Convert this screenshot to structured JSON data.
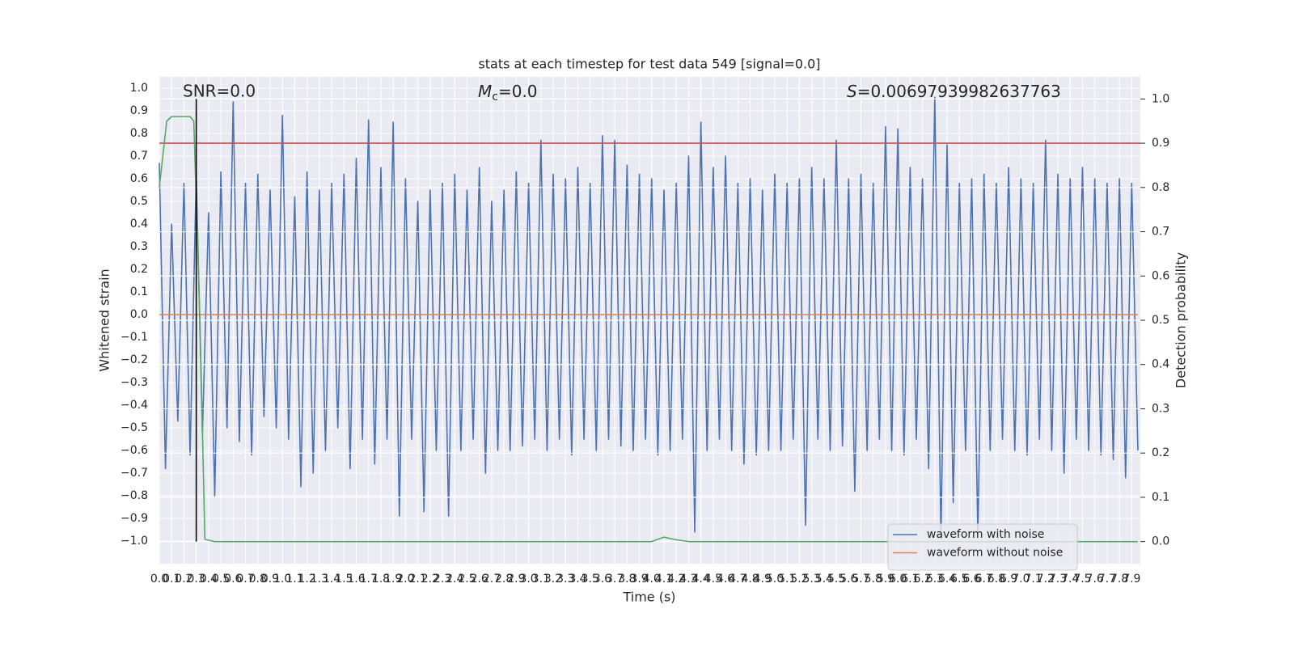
{
  "chart_data": {
    "type": "line",
    "title": "stats at each timestep for test data 549 [signal=0.0]",
    "xlabel": "Time (s)",
    "ylabel": "Whitened strain",
    "y2label": "Detection probability",
    "annotations": [
      {
        "text": "SNR=0.0"
      },
      {
        "symbol": "M",
        "subscript": "c",
        "text": "=0.0"
      },
      {
        "symbol": "S",
        "text": "=0.00697939982637763"
      }
    ],
    "xlim": [
      0,
      7.97
    ],
    "ylim": [
      -1.1,
      1.05
    ],
    "y2lim": [
      -0.05,
      1.05
    ],
    "grid": true,
    "legend": "lower right",
    "xticks": [
      {
        "value": 0,
        "label": "0.0"
      },
      0.1,
      0.2,
      0.3,
      0.4,
      0.5,
      0.6,
      0.7,
      0.8,
      0.9,
      {
        "value": 1,
        "label": "1.0"
      },
      1.1,
      1.2,
      1.3,
      1.4,
      1.5,
      1.6,
      1.7,
      1.8,
      1.9,
      {
        "value": 2,
        "label": "2.0"
      },
      2.1,
      2.2,
      2.3,
      2.4,
      2.5,
      2.6,
      2.7,
      2.8,
      2.9,
      {
        "value": 3,
        "label": "3.0"
      },
      3.1,
      3.2,
      3.3,
      3.4,
      3.5,
      3.6,
      3.7,
      3.8,
      3.9,
      {
        "value": 4,
        "label": "4.0"
      },
      4.1,
      4.2,
      4.3,
      4.4,
      4.5,
      4.6,
      4.7,
      4.8,
      4.9,
      {
        "value": 5,
        "label": "5.0"
      },
      5.1,
      5.2,
      5.3,
      5.4,
      5.5,
      5.6,
      5.7,
      5.8,
      5.9,
      {
        "value": 6,
        "label": "6.0"
      },
      6.1,
      6.2,
      6.3,
      6.4,
      6.5,
      6.6,
      6.7,
      6.8,
      6.9,
      {
        "value": 7,
        "label": "7.0"
      },
      7.1,
      7.2,
      7.3,
      7.4,
      7.5,
      7.6,
      7.7,
      7.8,
      7.9
    ],
    "yticks": [
      {
        "value": -1,
        "label": "−1.0"
      },
      {
        "value": -0.9,
        "label": "−0.9"
      },
      {
        "value": -0.8,
        "label": "−0.8"
      },
      {
        "value": -0.7,
        "label": "−0.7"
      },
      {
        "value": -0.6,
        "label": "−0.6"
      },
      {
        "value": -0.5,
        "label": "−0.5"
      },
      {
        "value": -0.4,
        "label": "−0.4"
      },
      {
        "value": -0.3,
        "label": "−0.3"
      },
      {
        "value": -0.2,
        "label": "−0.2"
      },
      {
        "value": -0.1,
        "label": "−0.1"
      },
      {
        "value": 0,
        "label": "0.0"
      },
      0.1,
      0.2,
      0.3,
      0.4,
      0.5,
      0.6,
      0.7,
      0.8,
      0.9,
      {
        "value": 1,
        "label": "1.0"
      }
    ],
    "y2ticks": [
      {
        "value": 0,
        "label": "0.0"
      },
      0.1,
      0.2,
      0.3,
      0.4,
      0.5,
      0.6,
      0.7,
      0.8,
      0.9,
      {
        "value": 1,
        "label": "1.0"
      }
    ],
    "series": [
      {
        "name": "waveform with noise",
        "color": "#4c72b0",
        "axis": "y",
        "x": [
          0,
          0.05,
          0.1,
          0.15,
          0.2,
          0.25,
          0.3,
          0.35,
          0.4,
          0.45,
          0.5,
          0.55,
          0.6,
          0.65,
          0.7,
          0.75,
          0.8,
          0.85,
          0.9,
          0.95,
          1,
          1.05,
          1.1,
          1.15,
          1.2,
          1.25,
          1.3,
          1.35,
          1.4,
          1.45,
          1.5,
          1.55,
          1.6,
          1.65,
          1.7,
          1.75,
          1.8,
          1.85,
          1.9,
          1.95,
          2,
          2.05,
          2.1,
          2.15,
          2.2,
          2.25,
          2.3,
          2.35,
          2.4,
          2.45,
          2.5,
          2.55,
          2.6,
          2.65,
          2.7,
          2.75,
          2.8,
          2.85,
          2.9,
          2.95,
          3,
          3.05,
          3.1,
          3.15,
          3.2,
          3.25,
          3.3,
          3.35,
          3.4,
          3.45,
          3.5,
          3.55,
          3.6,
          3.65,
          3.7,
          3.75,
          3.8,
          3.85,
          3.9,
          3.95,
          4,
          4.05,
          4.1,
          4.15,
          4.2,
          4.25,
          4.3,
          4.35,
          4.4,
          4.45,
          4.5,
          4.55,
          4.6,
          4.65,
          4.7,
          4.75,
          4.8,
          4.85,
          4.9,
          4.95,
          5,
          5.05,
          5.1,
          5.15,
          5.2,
          5.25,
          5.3,
          5.35,
          5.4,
          5.45,
          5.5,
          5.55,
          5.6,
          5.65,
          5.7,
          5.75,
          5.8,
          5.85,
          5.9,
          5.95,
          6,
          6.05,
          6.1,
          6.15,
          6.2,
          6.25,
          6.3,
          6.35,
          6.4,
          6.45,
          6.5,
          6.55,
          6.6,
          6.65,
          6.7,
          6.75,
          6.8,
          6.85,
          6.9,
          6.95,
          7,
          7.05,
          7.1,
          7.15,
          7.2,
          7.25,
          7.3,
          7.35,
          7.4,
          7.45,
          7.5,
          7.55,
          7.6,
          7.65,
          7.7,
          7.75,
          7.8,
          7.85,
          7.9,
          7.95
        ],
        "values": [
          0.67,
          -0.68,
          0.4,
          -0.47,
          0.58,
          -0.62,
          0.62,
          -0.53,
          0.45,
          -0.8,
          0.63,
          -0.5,
          0.94,
          -0.56,
          0.58,
          -0.62,
          0.62,
          -0.45,
          0.55,
          -0.5,
          0.88,
          -0.55,
          0.52,
          -0.76,
          0.63,
          -0.7,
          0.55,
          -0.6,
          0.58,
          -0.5,
          0.62,
          -0.68,
          0.69,
          -0.55,
          0.86,
          -0.66,
          0.65,
          -0.55,
          0.85,
          -0.89,
          0.6,
          -0.55,
          0.5,
          -0.87,
          0.55,
          -0.6,
          0.58,
          -0.89,
          0.62,
          -0.6,
          0.55,
          -0.55,
          0.65,
          -0.7,
          0.5,
          -0.6,
          0.55,
          -0.6,
          0.63,
          -0.58,
          0.58,
          -0.55,
          0.77,
          -0.6,
          0.62,
          -0.55,
          0.6,
          -0.62,
          0.65,
          -0.55,
          0.58,
          -0.6,
          0.79,
          -0.55,
          0.77,
          -0.58,
          0.66,
          -0.6,
          0.62,
          -0.55,
          0.6,
          -0.62,
          0.55,
          -0.6,
          0.58,
          -0.55,
          0.7,
          -0.96,
          0.85,
          -0.6,
          0.65,
          -0.55,
          0.7,
          -0.6,
          0.58,
          -0.66,
          0.6,
          -0.62,
          0.55,
          -0.6,
          0.62,
          -0.6,
          0.58,
          -0.55,
          0.6,
          -0.93,
          0.65,
          -0.55,
          0.6,
          -0.6,
          0.77,
          -0.58,
          0.6,
          -0.78,
          0.62,
          -0.6,
          0.58,
          -0.55,
          0.83,
          -0.6,
          0.82,
          -0.62,
          0.65,
          -0.55,
          0.6,
          -0.68,
          0.96,
          -0.99,
          0.75,
          -0.83,
          0.58,
          -0.6,
          0.6,
          -0.98,
          0.62,
          -0.6,
          0.58,
          -0.55,
          0.65,
          -0.6,
          0.6,
          -0.62,
          0.58,
          -0.55,
          0.77,
          -0.6,
          0.62,
          -0.7,
          0.6,
          -0.55,
          0.65,
          -0.6,
          0.6,
          -0.62,
          0.58,
          -0.64,
          0.6,
          -0.72,
          0.58,
          -0.6
        ]
      },
      {
        "name": "waveform without noise",
        "color": "#dd8452",
        "axis": "y",
        "x": [
          0,
          7.95
        ],
        "values": [
          0,
          0
        ]
      },
      {
        "color": "#c44e52",
        "axis": "y2",
        "x": [
          0,
          7.97
        ],
        "values": [
          0.9,
          0.9
        ]
      },
      {
        "color": "#55a868",
        "axis": "y2",
        "x": [
          0,
          0.06,
          0.1,
          0.25,
          0.28,
          0.33,
          0.37,
          0.45,
          4.0,
          4.1,
          4.18,
          4.3,
          7.95
        ],
        "values": [
          0.8,
          0.95,
          0.96,
          0.96,
          0.95,
          0.5,
          0.005,
          0,
          0,
          0.01,
          0.005,
          0,
          0
        ]
      },
      {
        "color": "#000000",
        "axis": "y2",
        "x": [
          0.3,
          0.3
        ],
        "values": [
          0,
          1
        ]
      }
    ]
  }
}
